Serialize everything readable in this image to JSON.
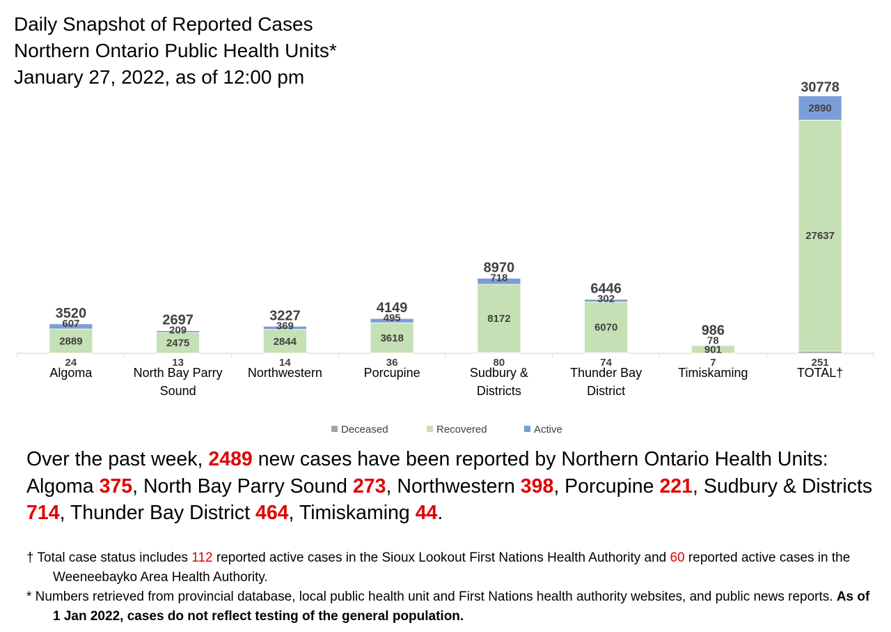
{
  "title": {
    "line1": "Daily Snapshot of Reported Cases",
    "line2": "Northern Ontario Public Health Units*",
    "line3": "January 27, 2022, as of 12:00 pm"
  },
  "chart_data": {
    "type": "bar",
    "stacked": true,
    "categories": [
      "Algoma",
      "North Bay Parry Sound",
      "Northwestern",
      "Porcupine",
      "Sudbury & Districts",
      "Thunder Bay District",
      "Timiskaming",
      "TOTAL†"
    ],
    "category_lines": [
      [
        "Algoma"
      ],
      [
        "North Bay Parry",
        "Sound"
      ],
      [
        "Northwestern"
      ],
      [
        "Porcupine"
      ],
      [
        "Sudbury &",
        "Districts"
      ],
      [
        "Thunder Bay",
        "District"
      ],
      [
        "Timiskaming"
      ],
      [
        "TOTAL†"
      ]
    ],
    "series": [
      {
        "name": "Deceased",
        "color": "#a5a5a5",
        "values": [
          24,
          13,
          14,
          36,
          80,
          74,
          7,
          251
        ]
      },
      {
        "name": "Recovered",
        "color": "#c5e0b4",
        "values": [
          2889,
          2475,
          2844,
          3618,
          8172,
          6070,
          901,
          27637
        ]
      },
      {
        "name": "Active",
        "color": "#7a9ed8",
        "values": [
          607,
          209,
          369,
          495,
          718,
          302,
          78,
          2890
        ]
      }
    ],
    "totals": [
      3520,
      2697,
      3227,
      4149,
      8970,
      6446,
      986,
      30778
    ],
    "ylim": [
      0,
      32000
    ],
    "grid": false,
    "legend_position": "bottom"
  },
  "summary": {
    "p1": "Over the past week, ",
    "total_new": "2489",
    "p2": " new cases have been reported by Northern Ontario Health Units: ",
    "items": [
      {
        "name": "Algoma",
        "value": "375",
        "sep": ", "
      },
      {
        "name": "North Bay Parry Sound",
        "value": "273",
        "sep": ", "
      },
      {
        "name": "Northwestern",
        "value": "398",
        "sep": ", "
      },
      {
        "name": "Porcupine",
        "value": "221",
        "sep": ", "
      },
      {
        "name": "Sudbury & Districts",
        "value": "714",
        "sep": ", "
      },
      {
        "name": "Thunder Bay District",
        "value": "464",
        "sep": ", "
      },
      {
        "name": "Timiskaming",
        "value": "44",
        "sep": "."
      }
    ]
  },
  "notes": {
    "dagger": {
      "t1": "† Total case status includes ",
      "n1": "112",
      "t2": " reported active cases in the Sioux Lookout First Nations Health Authority and ",
      "n2": "60",
      "t3": " reported active cases in the Weeneebayko Area Health Authority."
    },
    "star": {
      "t1": "* Numbers retrieved from provincial database, local public health unit and First Nations health authority websites, and public news reports. ",
      "bold": "As of 1 Jan 2022, cases do not reflect testing of the general population."
    }
  }
}
